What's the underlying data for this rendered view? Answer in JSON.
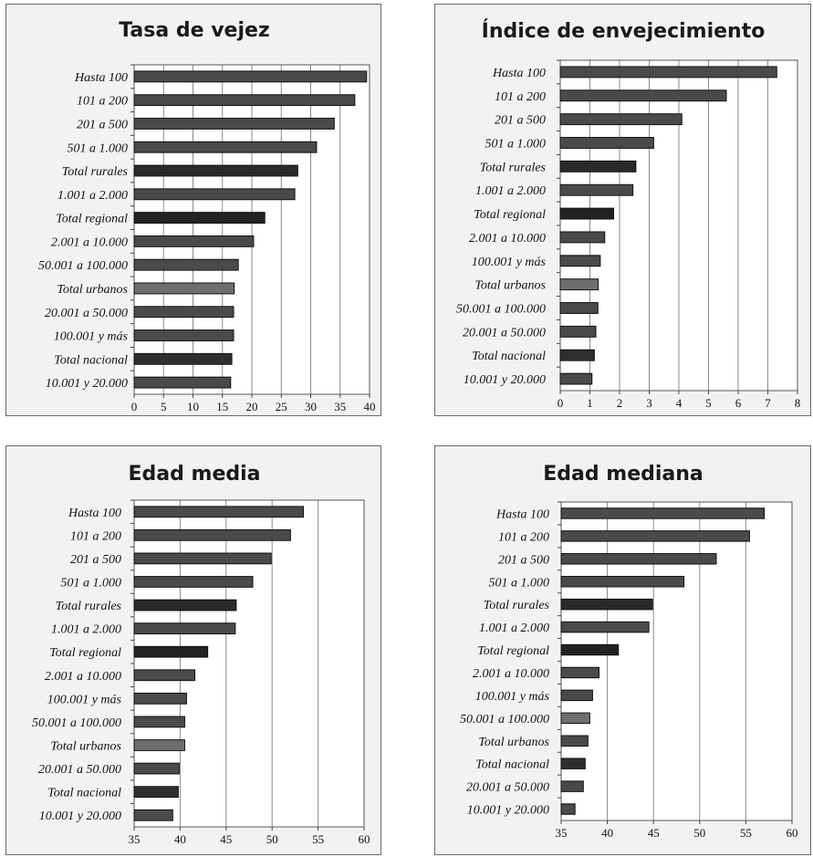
{
  "chart_data": [
    {
      "type": "bar",
      "orientation": "horizontal",
      "title": "Tasa de vejez",
      "categories": [
        "Hasta 100",
        "101 a 200",
        "201 a 500",
        "501 a 1.000",
        "Total rurales",
        "1.001 a 2.000",
        "Total regional",
        "2.001 a 10.000",
        "50.001 a 100.000",
        "Total urbanos",
        "20.001 a 50.000",
        "100.001 y más",
        "Total nacional",
        "10.001 y 20.000"
      ],
      "values": [
        39.5,
        37.5,
        34.0,
        31.0,
        27.8,
        27.3,
        22.2,
        20.3,
        17.7,
        17.0,
        16.9,
        16.9,
        16.6,
        16.4
      ],
      "xlim": [
        0,
        40
      ],
      "ticks": [
        "0",
        "5",
        "10",
        "15",
        "20",
        "25",
        "30",
        "35",
        "40"
      ],
      "colors": [
        "#4a4a4a",
        "#4a4a4a",
        "#4a4a4a",
        "#4a4a4a",
        "#2a2a2a",
        "#4a4a4a",
        "#222222",
        "#4a4a4a",
        "#4a4a4a",
        "#6e6e6e",
        "#4a4a4a",
        "#4a4a4a",
        "#2f2f2f",
        "#4a4a4a"
      ]
    },
    {
      "type": "bar",
      "orientation": "horizontal",
      "title": "Índice de envejecimiento",
      "categories": [
        "Hasta 100",
        "101 a 200",
        "201 a 500",
        "501 a 1.000",
        "Total rurales",
        "1.001 a 2.000",
        "Total regional",
        "2.001 a 10.000",
        "100.001 y más",
        "Total urbanos",
        "50.001 a 100.000",
        "20.001 a 50.000",
        "Total nacional",
        "10.001 y 20.000"
      ],
      "values": [
        7.3,
        5.6,
        4.1,
        3.15,
        2.55,
        2.45,
        1.8,
        1.5,
        1.35,
        1.28,
        1.27,
        1.2,
        1.15,
        1.07
      ],
      "xlim": [
        0,
        8
      ],
      "ticks": [
        "0",
        "1",
        "2",
        "3",
        "4",
        "5",
        "6",
        "7",
        "8"
      ],
      "colors": [
        "#4a4a4a",
        "#4a4a4a",
        "#4a4a4a",
        "#4a4a4a",
        "#2a2a2a",
        "#4a4a4a",
        "#222222",
        "#4a4a4a",
        "#4a4a4a",
        "#6e6e6e",
        "#4a4a4a",
        "#4a4a4a",
        "#2f2f2f",
        "#4a4a4a"
      ]
    },
    {
      "type": "bar",
      "orientation": "horizontal",
      "title": "Edad media",
      "categories": [
        "Hasta 100",
        "101 a 200",
        "201 a 500",
        "501 a 1.000",
        "Total rurales",
        "1.001 a 2.000",
        "Total regional",
        "2.001 a 10.000",
        "100.001 y más",
        "50.001 a 100.000",
        "Total urbanos",
        "20.001 a 50.000",
        "Total nacional",
        "10.001 y 20.000"
      ],
      "values": [
        53.4,
        52.0,
        49.9,
        47.9,
        46.1,
        46.0,
        43.0,
        41.6,
        40.7,
        40.5,
        40.5,
        39.9,
        39.8,
        39.2
      ],
      "xlim": [
        35,
        60
      ],
      "ticks": [
        "35",
        "40",
        "45",
        "50",
        "55",
        "60"
      ],
      "colors": [
        "#4a4a4a",
        "#4a4a4a",
        "#4a4a4a",
        "#4a4a4a",
        "#2a2a2a",
        "#4a4a4a",
        "#222222",
        "#4a4a4a",
        "#4a4a4a",
        "#4a4a4a",
        "#6e6e6e",
        "#4a4a4a",
        "#2f2f2f",
        "#4a4a4a"
      ]
    },
    {
      "type": "bar",
      "orientation": "horizontal",
      "title": "Edad mediana",
      "categories": [
        "Hasta 100",
        "101 a 200",
        "201 a 500",
        "501 a 1.000",
        "Total rurales",
        "1.001 a 2.000",
        "Total regional",
        "2.001 a 10.000",
        "100.001 y más",
        "50.001 a 100.000",
        "Total urbanos",
        "Total nacional",
        "20.001 a 50.000",
        "10.001 y 20.000"
      ],
      "values": [
        57.0,
        55.4,
        51.8,
        48.3,
        44.9,
        44.5,
        41.2,
        39.1,
        38.4,
        38.1,
        37.9,
        37.6,
        37.4,
        36.5
      ],
      "xlim": [
        35,
        60
      ],
      "ticks": [
        "35",
        "40",
        "45",
        "50",
        "55",
        "60"
      ],
      "colors": [
        "#4a4a4a",
        "#4a4a4a",
        "#4a4a4a",
        "#4a4a4a",
        "#2a2a2a",
        "#4a4a4a",
        "#222222",
        "#4a4a4a",
        "#4a4a4a",
        "#6e6e6e",
        "#4a4a4a",
        "#2f2f2f",
        "#4a4a4a",
        "#4a4a4a"
      ]
    }
  ]
}
